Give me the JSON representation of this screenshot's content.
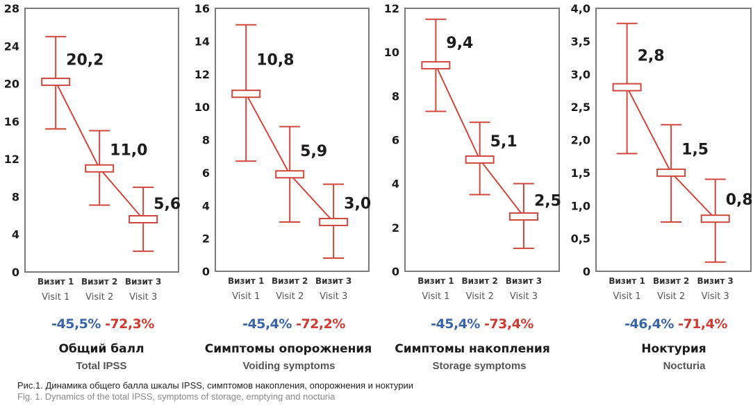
{
  "colors": {
    "series": "#d0463c",
    "frame": "#7a7a7a",
    "text": "#1c1c1c",
    "change_visit2": "#3a64a8",
    "change_visit3": "#cf3a32"
  },
  "chart_data": [
    {
      "type": "line",
      "title": "Общий балл",
      "subtitle": "Total IPSS",
      "categories_ru": [
        "Визит 1",
        "Визит 2",
        "Визит 3"
      ],
      "categories_en": [
        "Visit 1",
        "Visit 2",
        "Visit 3"
      ],
      "values": [
        20.2,
        11.0,
        5.6
      ],
      "value_labels": [
        "20,2",
        "11,0",
        "5,6"
      ],
      "error_upper": [
        25.0,
        15.0,
        9.0
      ],
      "error_lower": [
        15.2,
        7.1,
        2.2
      ],
      "ylim": [
        0,
        28
      ],
      "yticks": [
        0,
        4,
        8,
        12,
        16,
        20,
        24,
        28
      ],
      "ytick_labels": [
        "0",
        "4",
        "8",
        "12",
        "16",
        "20",
        "24",
        "28"
      ],
      "change_visit2": "-45,5%",
      "change_visit3": "-72,3%",
      "grid": false
    },
    {
      "type": "line",
      "title": "Симптомы  опорожнения",
      "subtitle": "Voiding symptoms",
      "categories_ru": [
        "Визит 1",
        "Визит 2",
        "Визит 3"
      ],
      "categories_en": [
        "Visit 1",
        "Visit 2",
        "Visit 3"
      ],
      "values": [
        10.8,
        5.9,
        3.0
      ],
      "value_labels": [
        "10,8",
        "5,9",
        "3,0"
      ],
      "error_upper": [
        15.0,
        8.8,
        5.3
      ],
      "error_lower": [
        6.7,
        3.0,
        0.8
      ],
      "ylim": [
        0,
        16
      ],
      "yticks": [
        0,
        2,
        4,
        6,
        8,
        10,
        12,
        14,
        16
      ],
      "ytick_labels": [
        "0",
        "2",
        "4",
        "6",
        "8",
        "10",
        "12",
        "14",
        "16"
      ],
      "change_visit2": "-45,4%",
      "change_visit3": "-72,2%",
      "grid": false
    },
    {
      "type": "line",
      "title": "Симптомы  накопления",
      "subtitle": "Storage symptoms",
      "categories_ru": [
        "Визит 1",
        "Визит 2",
        "Визит 3"
      ],
      "categories_en": [
        "Visit 1",
        "Visit 2",
        "Visit 3"
      ],
      "values": [
        9.4,
        5.1,
        2.5
      ],
      "value_labels": [
        "9,4",
        "5,1",
        "2,5"
      ],
      "error_upper": [
        11.5,
        6.8,
        4.0
      ],
      "error_lower": [
        7.3,
        3.5,
        1.05
      ],
      "ylim": [
        0,
        12
      ],
      "yticks": [
        0,
        2,
        4,
        6,
        8,
        10,
        12
      ],
      "ytick_labels": [
        "0",
        "2",
        "4",
        "6",
        "8",
        "10",
        "12"
      ],
      "change_visit2": "-45,4%",
      "change_visit3": "-73,4%",
      "grid": false
    },
    {
      "type": "line",
      "title": "Ноктурия",
      "subtitle": "Nocturia",
      "categories_ru": [
        "Визит 1",
        "Визит 2",
        "Визит 3"
      ],
      "categories_en": [
        "Visit 1",
        "Visit 2",
        "Visit 3"
      ],
      "values": [
        2.8,
        1.5,
        0.8
      ],
      "value_labels": [
        "2,8",
        "1,5",
        "0,8"
      ],
      "error_upper": [
        3.77,
        2.23,
        1.4
      ],
      "error_lower": [
        1.79,
        0.75,
        0.14
      ],
      "ylim": [
        0,
        4
      ],
      "yticks": [
        0,
        0.5,
        1,
        1.5,
        2,
        2.5,
        3,
        3.5,
        4
      ],
      "ytick_labels": [
        "0",
        "0,5",
        "1,0",
        "1,5",
        "2,0",
        "2,5",
        "3,0",
        "3,5",
        "4,0"
      ],
      "change_visit2": "-46,4%",
      "change_visit3": "-71,4%",
      "grid": false
    }
  ],
  "caption": {
    "ru": "Рис.1. Динамика общего балла шкалы IPSS, симптомов накопления, опорожнения и ноктурии",
    "en": "Fig. 1. Dynamics of the total IPSS, symptoms of storage, emptying and nocturia"
  }
}
